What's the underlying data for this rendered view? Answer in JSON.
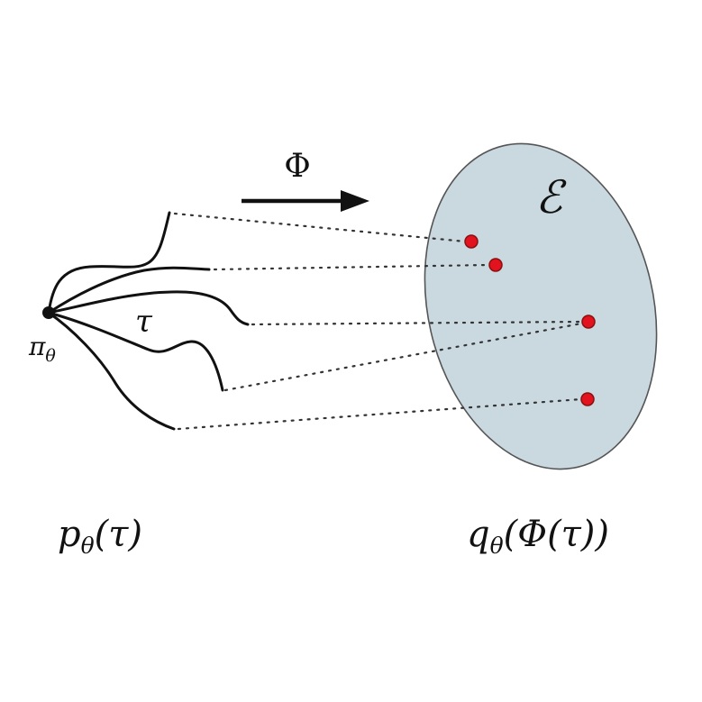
{
  "labels": {
    "map_symbol": "Φ",
    "embedding_space": "ℰ",
    "trajectory": "τ",
    "policy_main": "π",
    "policy_sub": "θ",
    "traj_dist_main": "p",
    "traj_dist_sub": "θ",
    "traj_dist_arg": "(τ)",
    "embed_dist_main": "q",
    "embed_dist_sub": "θ",
    "embed_dist_arg": "(Φ(τ))"
  },
  "colors": {
    "ellipse_fill": "#c9d9df",
    "ellipse_stroke": "#555555",
    "point_fill": "#e3121f",
    "ink": "#111111"
  },
  "counts": {
    "trajectories": 5,
    "embedded_points": 4
  }
}
